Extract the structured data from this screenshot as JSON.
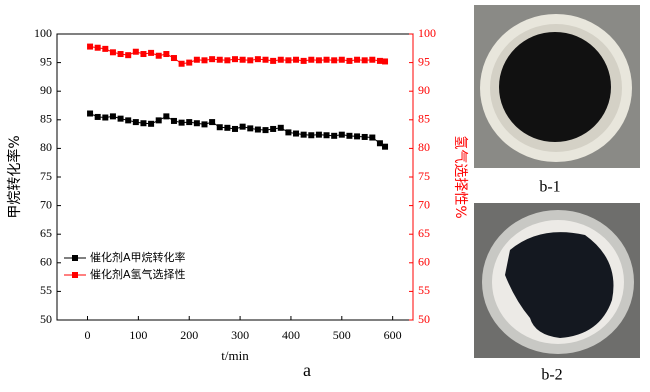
{
  "chart_data": {
    "type": "line",
    "x_label": "t/min",
    "y_label": "甲烷转化率%",
    "y2_label": "氢气选择性%",
    "panel_label": "a",
    "x": [
      5,
      20,
      35,
      50,
      65,
      80,
      95,
      110,
      125,
      140,
      155,
      170,
      185,
      200,
      215,
      230,
      245,
      260,
      275,
      290,
      305,
      320,
      335,
      350,
      365,
      380,
      395,
      410,
      425,
      440,
      455,
      470,
      485,
      500,
      515,
      530,
      545,
      560,
      575,
      585
    ],
    "series": [
      {
        "name": "催化剂A甲烷转化率",
        "color": "#000000",
        "axis": "y",
        "values": [
          86.1,
          85.5,
          85.4,
          85.6,
          85.2,
          84.9,
          84.6,
          84.4,
          84.3,
          84.9,
          85.6,
          84.8,
          84.5,
          84.6,
          84.4,
          84.2,
          84.6,
          83.7,
          83.6,
          83.4,
          83.8,
          83.5,
          83.3,
          83.2,
          83.4,
          83.6,
          82.8,
          82.6,
          82.4,
          82.3,
          82.4,
          82.3,
          82.2,
          82.4,
          82.2,
          82.1,
          82.0,
          81.9,
          80.9,
          80.3
        ]
      },
      {
        "name": "催化剂A氢气选择性",
        "color": "#ff0000",
        "axis": "y2",
        "values": [
          97.8,
          97.6,
          97.4,
          96.8,
          96.5,
          96.3,
          96.9,
          96.5,
          96.7,
          96.2,
          96.5,
          95.8,
          94.8,
          95.0,
          95.5,
          95.4,
          95.6,
          95.5,
          95.4,
          95.6,
          95.5,
          95.4,
          95.6,
          95.5,
          95.3,
          95.5,
          95.4,
          95.5,
          95.3,
          95.5,
          95.4,
          95.5,
          95.4,
          95.5,
          95.3,
          95.5,
          95.4,
          95.5,
          95.3,
          95.2
        ]
      }
    ],
    "xlim": [
      -60,
      640
    ],
    "xticks": [
      0,
      100,
      200,
      300,
      400,
      500,
      600
    ],
    "ylim": [
      50,
      100
    ],
    "yticks": [
      50,
      55,
      60,
      65,
      70,
      75,
      80,
      85,
      90,
      95,
      100
    ],
    "y2lim": [
      50,
      100
    ],
    "y2ticks": [
      50,
      55,
      60,
      65,
      70,
      75,
      80,
      85,
      90,
      95,
      100
    ],
    "legend": "left"
  },
  "photos": [
    {
      "label": "b-1"
    },
    {
      "label": "b-2"
    }
  ]
}
